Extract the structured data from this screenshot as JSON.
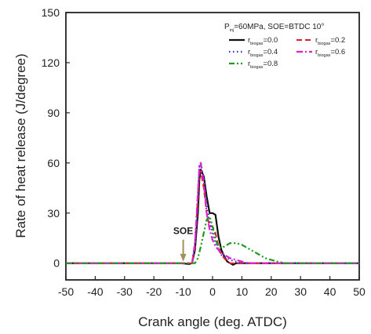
{
  "chart_data": {
    "type": "line",
    "title": "",
    "xlabel": "Crank angle (deg. ATDC)",
    "ylabel": "Rate of heat release (J/degree)",
    "xlim": [
      -50,
      50
    ],
    "ylim": [
      -10,
      150
    ],
    "x_ticks": [
      -50,
      -40,
      -30,
      -20,
      -10,
      0,
      10,
      20,
      30,
      40,
      50
    ],
    "y_ticks": [
      0,
      30,
      60,
      90,
      120,
      150
    ],
    "grid": false,
    "legend_position": "top-right",
    "condition_label": {
      "prefix": "P",
      "sub": "inj",
      "rest": "=60MPa, SOE=BTDC 10°"
    },
    "annotation": {
      "text": "SOE",
      "x": -10,
      "color": "#a0905a"
    },
    "series": [
      {
        "name": "r_biogas=0.0",
        "legend_prefix": "r",
        "legend_sub": "biogas",
        "legend_rest": "=0.0",
        "color": "#111111",
        "dash": "",
        "width": 2.2,
        "points": [
          [
            -50,
            0
          ],
          [
            -11,
            0
          ],
          [
            -8,
            -0.5
          ],
          [
            -7,
            0
          ],
          [
            -6,
            8
          ],
          [
            -5,
            30
          ],
          [
            -4.5,
            50
          ],
          [
            -4,
            56
          ],
          [
            -3,
            52
          ],
          [
            -2,
            40
          ],
          [
            -1,
            30
          ],
          [
            0,
            30
          ],
          [
            1,
            29
          ],
          [
            2,
            16
          ],
          [
            3,
            8
          ],
          [
            4,
            4
          ],
          [
            5,
            1
          ],
          [
            6,
            0
          ],
          [
            7,
            -1
          ],
          [
            8,
            0
          ],
          [
            10,
            0
          ],
          [
            50,
            0
          ]
        ]
      },
      {
        "name": "r_biogas=0.2",
        "legend_prefix": "r",
        "legend_sub": "biogas",
        "legend_rest": "=0.2",
        "color": "#e02020",
        "dash": "7,4",
        "width": 2,
        "points": [
          [
            -50,
            0
          ],
          [
            -10,
            0
          ],
          [
            -7,
            0
          ],
          [
            -6,
            10
          ],
          [
            -5,
            40
          ],
          [
            -4.5,
            55
          ],
          [
            -4,
            55
          ],
          [
            -3,
            45
          ],
          [
            -2,
            30
          ],
          [
            -1,
            22
          ],
          [
            0,
            22
          ],
          [
            1,
            18
          ],
          [
            2,
            10
          ],
          [
            3,
            5
          ],
          [
            4,
            3
          ],
          [
            5,
            1
          ],
          [
            6,
            0
          ],
          [
            8,
            0
          ],
          [
            50,
            0
          ]
        ]
      },
      {
        "name": "r_biogas=0.4",
        "legend_prefix": "r",
        "legend_sub": "biogas",
        "legend_rest": "=0.4",
        "color": "#3030d8",
        "dash": "1.5,3.5",
        "width": 2.2,
        "points": [
          [
            -50,
            0
          ],
          [
            -10,
            0
          ],
          [
            -7,
            0
          ],
          [
            -6,
            12
          ],
          [
            -5,
            40
          ],
          [
            -4.5,
            58
          ],
          [
            -4,
            60
          ],
          [
            -3,
            50
          ],
          [
            -2,
            35
          ],
          [
            -1,
            25
          ],
          [
            0,
            18
          ],
          [
            1,
            12
          ],
          [
            2,
            8
          ],
          [
            3,
            5
          ],
          [
            4,
            4
          ],
          [
            5,
            3
          ],
          [
            6,
            2
          ],
          [
            8,
            1
          ],
          [
            10,
            0
          ],
          [
            50,
            0
          ]
        ]
      },
      {
        "name": "r_biogas=0.6",
        "legend_prefix": "r",
        "legend_sub": "biogas",
        "legend_rest": "=0.6",
        "color": "#e020d0",
        "dash": "8,3,2,3",
        "width": 2.2,
        "points": [
          [
            -50,
            0
          ],
          [
            -10,
            0
          ],
          [
            -7,
            0
          ],
          [
            -6,
            12
          ],
          [
            -5,
            42
          ],
          [
            -4.5,
            58
          ],
          [
            -4,
            60
          ],
          [
            -3,
            48
          ],
          [
            -2,
            30
          ],
          [
            -1,
            20
          ],
          [
            0,
            14
          ],
          [
            1,
            10
          ],
          [
            2,
            8
          ],
          [
            3,
            6
          ],
          [
            4,
            5
          ],
          [
            5,
            4
          ],
          [
            6,
            3
          ],
          [
            8,
            2
          ],
          [
            10,
            1
          ],
          [
            12,
            0
          ],
          [
            50,
            0
          ]
        ]
      },
      {
        "name": "r_biogas=0.8",
        "legend_prefix": "r",
        "legend_sub": "biogas",
        "legend_rest": "=0.8",
        "color": "#1f9a1f",
        "dash": "7,3,2,3,2,3",
        "width": 2.2,
        "points": [
          [
            -50,
            0
          ],
          [
            -9,
            0
          ],
          [
            -6,
            0
          ],
          [
            -5,
            3
          ],
          [
            -4,
            10
          ],
          [
            -3,
            18
          ],
          [
            -2,
            26
          ],
          [
            -1,
            28
          ],
          [
            0,
            22
          ],
          [
            1,
            14
          ],
          [
            2,
            10
          ],
          [
            3,
            9
          ],
          [
            4,
            10
          ],
          [
            5,
            11
          ],
          [
            6,
            12
          ],
          [
            8,
            12
          ],
          [
            10,
            11
          ],
          [
            12,
            9
          ],
          [
            14,
            7
          ],
          [
            16,
            5
          ],
          [
            18,
            3
          ],
          [
            20,
            2
          ],
          [
            22,
            1
          ],
          [
            25,
            0
          ],
          [
            50,
            0
          ]
        ]
      }
    ]
  }
}
